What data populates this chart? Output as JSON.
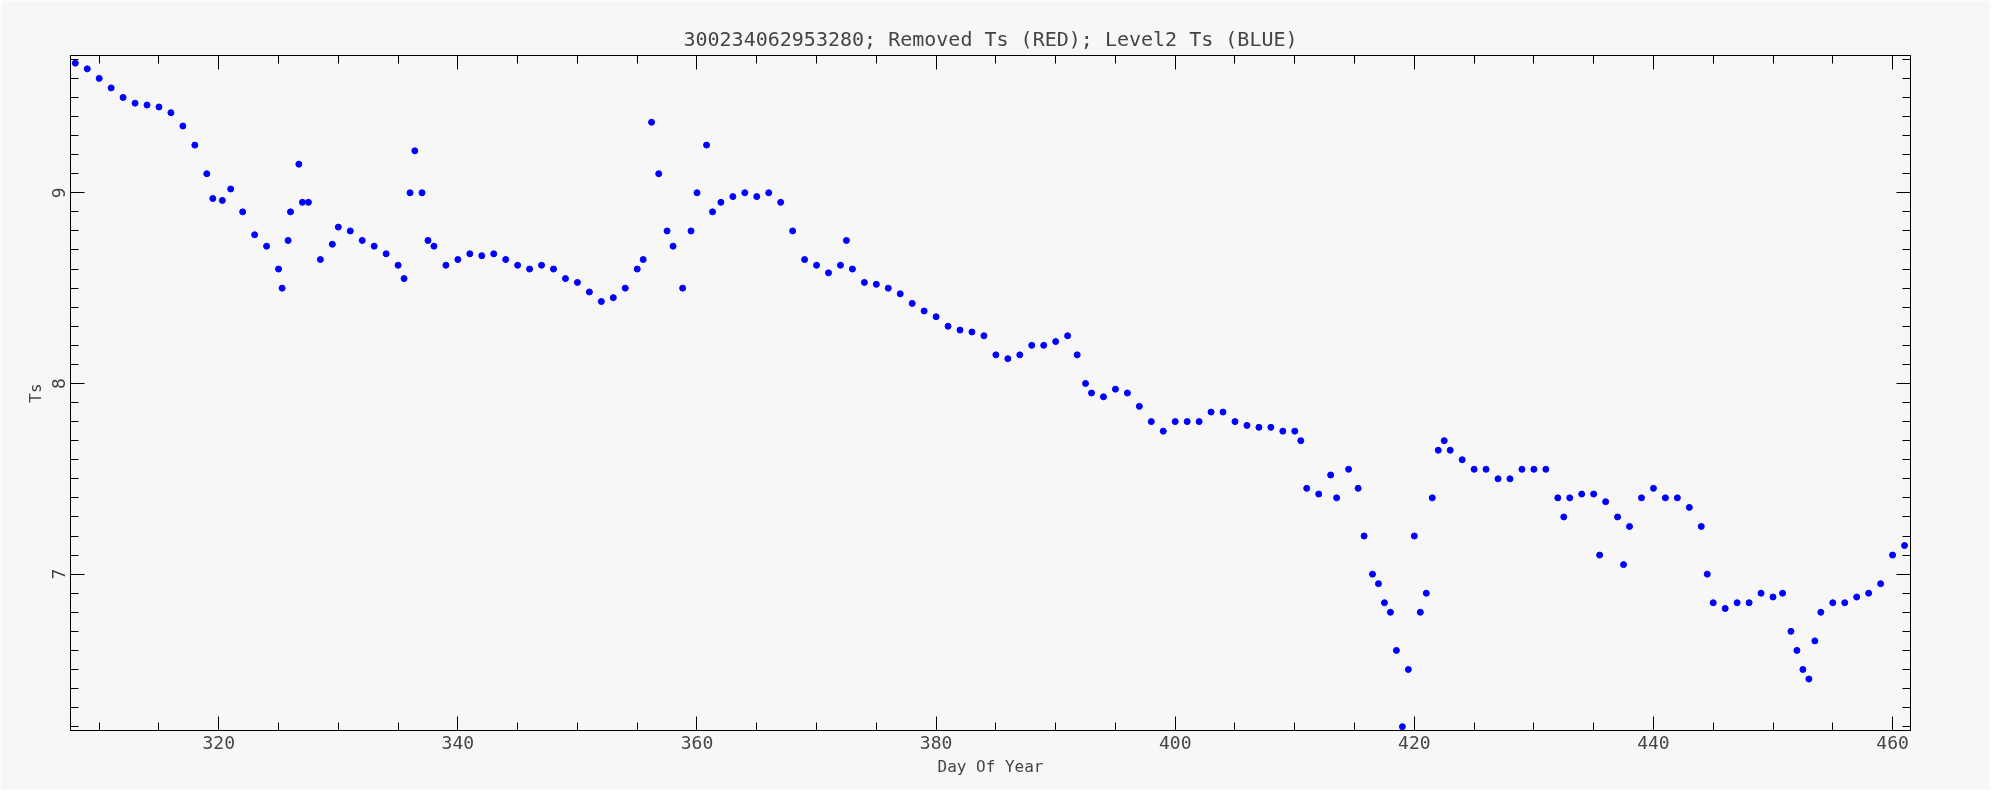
{
  "chart_data": {
    "type": "scatter",
    "title": "300234062953280; Removed Ts (RED); Level2 Ts (BLUE)",
    "xlabel": "Day Of Year",
    "ylabel": "Ts",
    "xlim": [
      307.6,
      461.5
    ],
    "ylim": [
      6.18,
      9.72
    ],
    "xticks": [
      320,
      340,
      360,
      380,
      400,
      420,
      440,
      460
    ],
    "yticks": [
      7,
      8,
      9
    ],
    "grid": false,
    "marker": "circle",
    "series": [
      {
        "color": "#0000ff",
        "x": [
          308,
          309,
          310,
          311,
          312,
          313,
          314,
          315,
          316,
          317,
          318,
          319,
          319.5,
          320.3,
          321,
          322,
          323,
          324,
          325,
          325.3,
          325.8,
          326,
          326.7,
          327,
          327.5,
          328.5,
          329.5,
          330,
          331,
          332,
          333,
          334,
          335,
          335.5,
          336,
          336.4,
          337,
          337.5,
          338,
          339,
          340,
          341,
          342,
          343,
          344,
          345,
          346,
          347,
          348,
          349,
          350,
          351,
          352,
          353,
          354,
          355,
          355.5,
          356.2,
          356.8,
          357.5,
          358,
          358.8,
          359.5,
          360,
          360.8,
          361.3,
          362,
          363,
          364,
          365,
          366,
          367,
          368,
          369,
          370,
          371,
          372,
          372.5,
          373,
          374,
          375,
          376,
          377,
          378,
          379,
          380,
          381,
          382,
          383,
          384,
          385,
          386,
          387,
          388,
          389,
          390,
          391,
          391.8,
          392.5,
          393,
          394,
          395,
          396,
          397,
          398,
          399,
          400,
          401,
          402,
          403,
          404,
          405,
          406,
          407,
          408,
          409,
          410,
          410.5,
          411,
          412,
          413,
          413.5,
          414.5,
          415.3,
          415.8,
          416.5,
          417,
          417.5,
          418,
          418.5,
          419,
          419.5,
          420,
          420.5,
          421,
          421.5,
          422,
          422.5,
          423,
          424,
          425,
          426,
          427,
          428,
          429,
          430,
          431,
          432,
          432.5,
          433,
          434,
          435,
          435.5,
          436,
          437,
          437.5,
          438,
          439,
          440,
          441,
          442,
          443,
          444,
          444.5,
          445,
          446,
          447,
          448,
          449,
          450,
          450.8,
          451.5,
          452,
          452.5,
          453,
          453.5,
          454,
          455,
          456,
          457,
          458,
          459,
          460,
          461
        ],
        "values": [
          9.68,
          9.65,
          9.6,
          9.55,
          9.5,
          9.47,
          9.46,
          9.45,
          9.42,
          9.35,
          9.25,
          9.1,
          8.97,
          8.96,
          9.02,
          8.9,
          8.78,
          8.72,
          8.6,
          8.5,
          8.75,
          8.9,
          9.15,
          8.95,
          8.95,
          8.65,
          8.73,
          8.82,
          8.8,
          8.75,
          8.72,
          8.68,
          8.62,
          8.55,
          9.0,
          9.22,
          9.0,
          8.75,
          8.72,
          8.62,
          8.65,
          8.68,
          8.67,
          8.68,
          8.65,
          8.62,
          8.6,
          8.62,
          8.6,
          8.55,
          8.53,
          8.48,
          8.43,
          8.45,
          8.5,
          8.6,
          8.65,
          9.37,
          9.1,
          8.8,
          8.72,
          8.5,
          8.8,
          9.0,
          9.25,
          8.9,
          8.95,
          8.98,
          9.0,
          8.98,
          9.0,
          8.95,
          8.8,
          8.65,
          8.62,
          8.58,
          8.62,
          8.75,
          8.6,
          8.53,
          8.52,
          8.5,
          8.47,
          8.42,
          8.38,
          8.35,
          8.3,
          8.28,
          8.27,
          8.25,
          8.15,
          8.13,
          8.15,
          8.2,
          8.2,
          8.22,
          8.25,
          8.15,
          8.0,
          7.95,
          7.93,
          7.97,
          7.95,
          7.88,
          7.8,
          7.75,
          7.8,
          7.8,
          7.8,
          7.85,
          7.85,
          7.8,
          7.78,
          7.77,
          7.77,
          7.75,
          7.75,
          7.7,
          7.45,
          7.42,
          7.52,
          7.4,
          7.55,
          7.45,
          7.2,
          7.0,
          6.95,
          6.85,
          6.8,
          6.6,
          6.2,
          6.5,
          7.2,
          6.8,
          6.9,
          7.4,
          7.65,
          7.7,
          7.65,
          7.6,
          7.55,
          7.55,
          7.5,
          7.5,
          7.55,
          7.55,
          7.55,
          7.4,
          7.3,
          7.4,
          7.42,
          7.42,
          7.1,
          7.38,
          7.3,
          7.05,
          7.25,
          7.4,
          7.45,
          7.4,
          7.4,
          7.35,
          7.25,
          7.0,
          6.85,
          6.82,
          6.85,
          6.85,
          6.9,
          6.88,
          6.9,
          6.7,
          6.6,
          6.5,
          6.45,
          6.65,
          6.8,
          6.85,
          6.85,
          6.88,
          6.9,
          6.95,
          7.1,
          7.15
        ]
      }
    ]
  }
}
